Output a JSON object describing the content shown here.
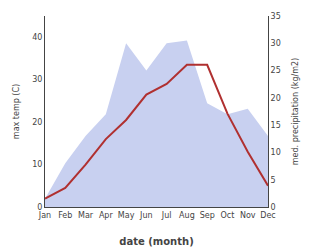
{
  "chart_data": {
    "type": "line",
    "xlabel": "date (month)",
    "ylabel": "max temp (C)",
    "y2label": "med. precipitation (kg/m2)",
    "categories": [
      "Jan",
      "Feb",
      "Mar",
      "Apr",
      "May",
      "Jun",
      "Jul",
      "Aug",
      "Sep",
      "Oct",
      "Nov",
      "Dec"
    ],
    "series": [
      {
        "type": "area",
        "axis": "y2",
        "color": "#c8d0f0",
        "values": [
          1.5,
          8.0,
          13.0,
          17.0,
          30.0,
          25.0,
          30.0,
          30.5,
          19.0,
          17.0,
          18.0,
          13.0
        ]
      },
      {
        "type": "line",
        "axis": "y",
        "color": "#b03030",
        "values": [
          2.0,
          4.5,
          10.0,
          16.0,
          20.5,
          26.5,
          29.0,
          33.5,
          33.5,
          22.0,
          13.0,
          5.0
        ]
      }
    ],
    "ylim": [
      0,
      45
    ],
    "yticks": [
      0,
      10,
      20,
      30,
      40
    ],
    "y2lim": [
      0,
      35
    ],
    "y2ticks": [
      0,
      5,
      10,
      15,
      20,
      25,
      30,
      35
    ],
    "grid": false
  }
}
